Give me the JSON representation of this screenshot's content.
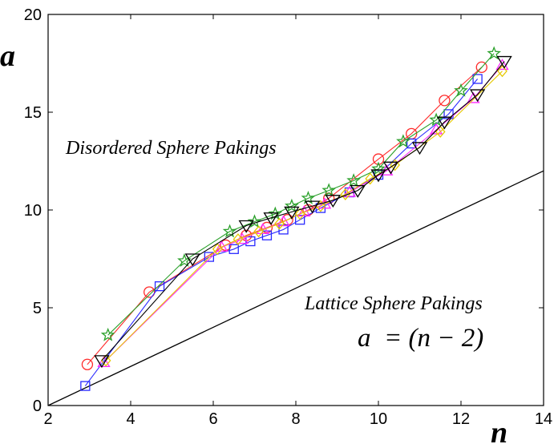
{
  "chart_data": {
    "type": "line",
    "title": "",
    "xlabel": "n",
    "ylabel": "a",
    "xlim": [
      2,
      14
    ],
    "ylim": [
      0,
      20
    ],
    "xticks": [
      2,
      4,
      6,
      8,
      10,
      12,
      14
    ],
    "yticks": [
      0,
      5,
      10,
      15,
      20
    ],
    "grid": false,
    "annotations": {
      "disordered": "Disordered Sphere Pakings",
      "lattice": "Lattice Sphere Pakings",
      "formula": "a  = (n − 2)"
    },
    "reference_line": {
      "name": "a = (n - 2)",
      "color": "#000000",
      "x": [
        2,
        14
      ],
      "y": [
        0,
        12
      ]
    },
    "series": [
      {
        "name": "circles",
        "marker": "circle",
        "color": "#ff2a2a",
        "x": [
          2.95,
          4.45,
          6.3,
          6.8,
          7.3,
          7.8,
          8.3,
          8.8,
          10.0,
          10.8,
          11.6,
          12.5
        ],
        "y": [
          2.1,
          5.8,
          8.2,
          8.7,
          9.1,
          9.5,
          10.0,
          10.6,
          12.6,
          13.9,
          15.6,
          17.3
        ]
      },
      {
        "name": "squares",
        "marker": "square",
        "color": "#2a2aff",
        "x": [
          2.9,
          4.7,
          5.9,
          6.5,
          6.9,
          7.3,
          7.7,
          8.1,
          8.6,
          9.3,
          10.0,
          10.8,
          11.7,
          12.4
        ],
        "y": [
          1.0,
          6.1,
          7.6,
          8.0,
          8.4,
          8.7,
          9.0,
          9.5,
          10.1,
          10.9,
          11.8,
          13.4,
          14.9,
          16.7
        ]
      },
      {
        "name": "stars",
        "marker": "star",
        "color": "#2aa02a",
        "x": [
          3.45,
          5.3,
          6.4,
          7.0,
          7.5,
          7.9,
          8.3,
          8.8,
          9.4,
          10.0,
          10.6,
          11.4,
          12.0,
          12.8
        ],
        "y": [
          3.6,
          7.4,
          8.9,
          9.4,
          9.8,
          10.2,
          10.6,
          11.0,
          11.5,
          12.1,
          13.5,
          14.6,
          16.1,
          18.0
        ]
      },
      {
        "name": "triangles-up",
        "marker": "triangle-up",
        "color": "#ff2aff",
        "x": [
          3.35,
          6.2,
          6.7,
          7.2,
          7.7,
          8.2,
          8.7,
          9.3,
          10.2,
          11.4,
          12.3,
          13.0
        ],
        "y": [
          2.2,
          8.1,
          8.5,
          9.0,
          9.4,
          9.9,
          10.3,
          10.9,
          12.0,
          14.1,
          15.7,
          17.4
        ]
      },
      {
        "name": "diamonds",
        "marker": "diamond",
        "color": "#e6c800",
        "x": [
          3.4,
          6.1,
          6.6,
          7.1,
          7.6,
          8.1,
          8.6,
          9.2,
          9.8,
          10.4,
          11.5,
          13.0
        ],
        "y": [
          2.3,
          8.0,
          8.5,
          8.9,
          9.3,
          9.8,
          10.2,
          10.8,
          11.6,
          12.3,
          14.0,
          17.1
        ]
      },
      {
        "name": "triangles-down",
        "marker": "triangle-down",
        "color": "#000000",
        "x": [
          3.3,
          5.5,
          6.8,
          7.4,
          7.9,
          8.4,
          8.9,
          9.5,
          10.0,
          10.3,
          11.0,
          11.6,
          12.4,
          13.05
        ],
        "y": [
          2.3,
          7.5,
          9.2,
          9.6,
          9.9,
          10.2,
          10.5,
          11.0,
          11.8,
          12.2,
          13.2,
          14.5,
          15.9,
          17.6
        ]
      }
    ]
  }
}
